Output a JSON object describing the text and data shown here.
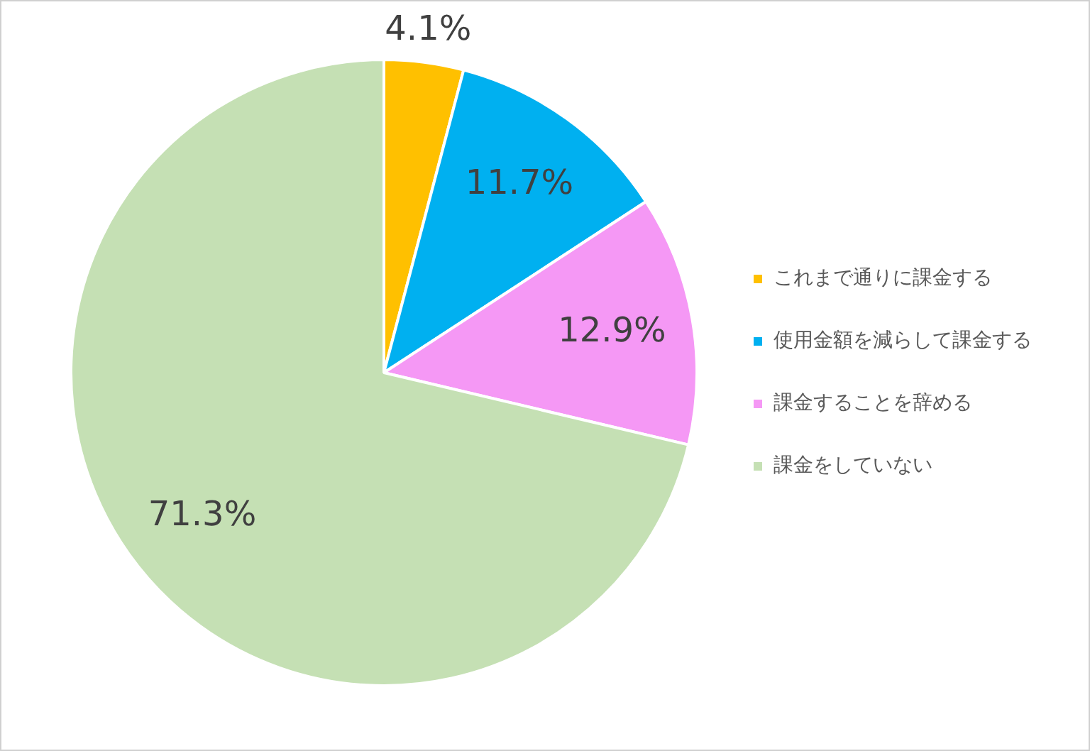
{
  "chart_data": {
    "type": "pie",
    "categories": [
      "これまで通りに課金する",
      "使用金額を減らして課金する",
      "課金することを辞める",
      "課金をしていない"
    ],
    "values": [
      4.1,
      11.7,
      12.9,
      71.3
    ],
    "colors": [
      "#ffc000",
      "#00b0f0",
      "#f598f5",
      "#c5e0b4"
    ],
    "value_labels": [
      "4.1%",
      "11.7%",
      "12.9%",
      "71.3%"
    ],
    "legend": "right"
  }
}
